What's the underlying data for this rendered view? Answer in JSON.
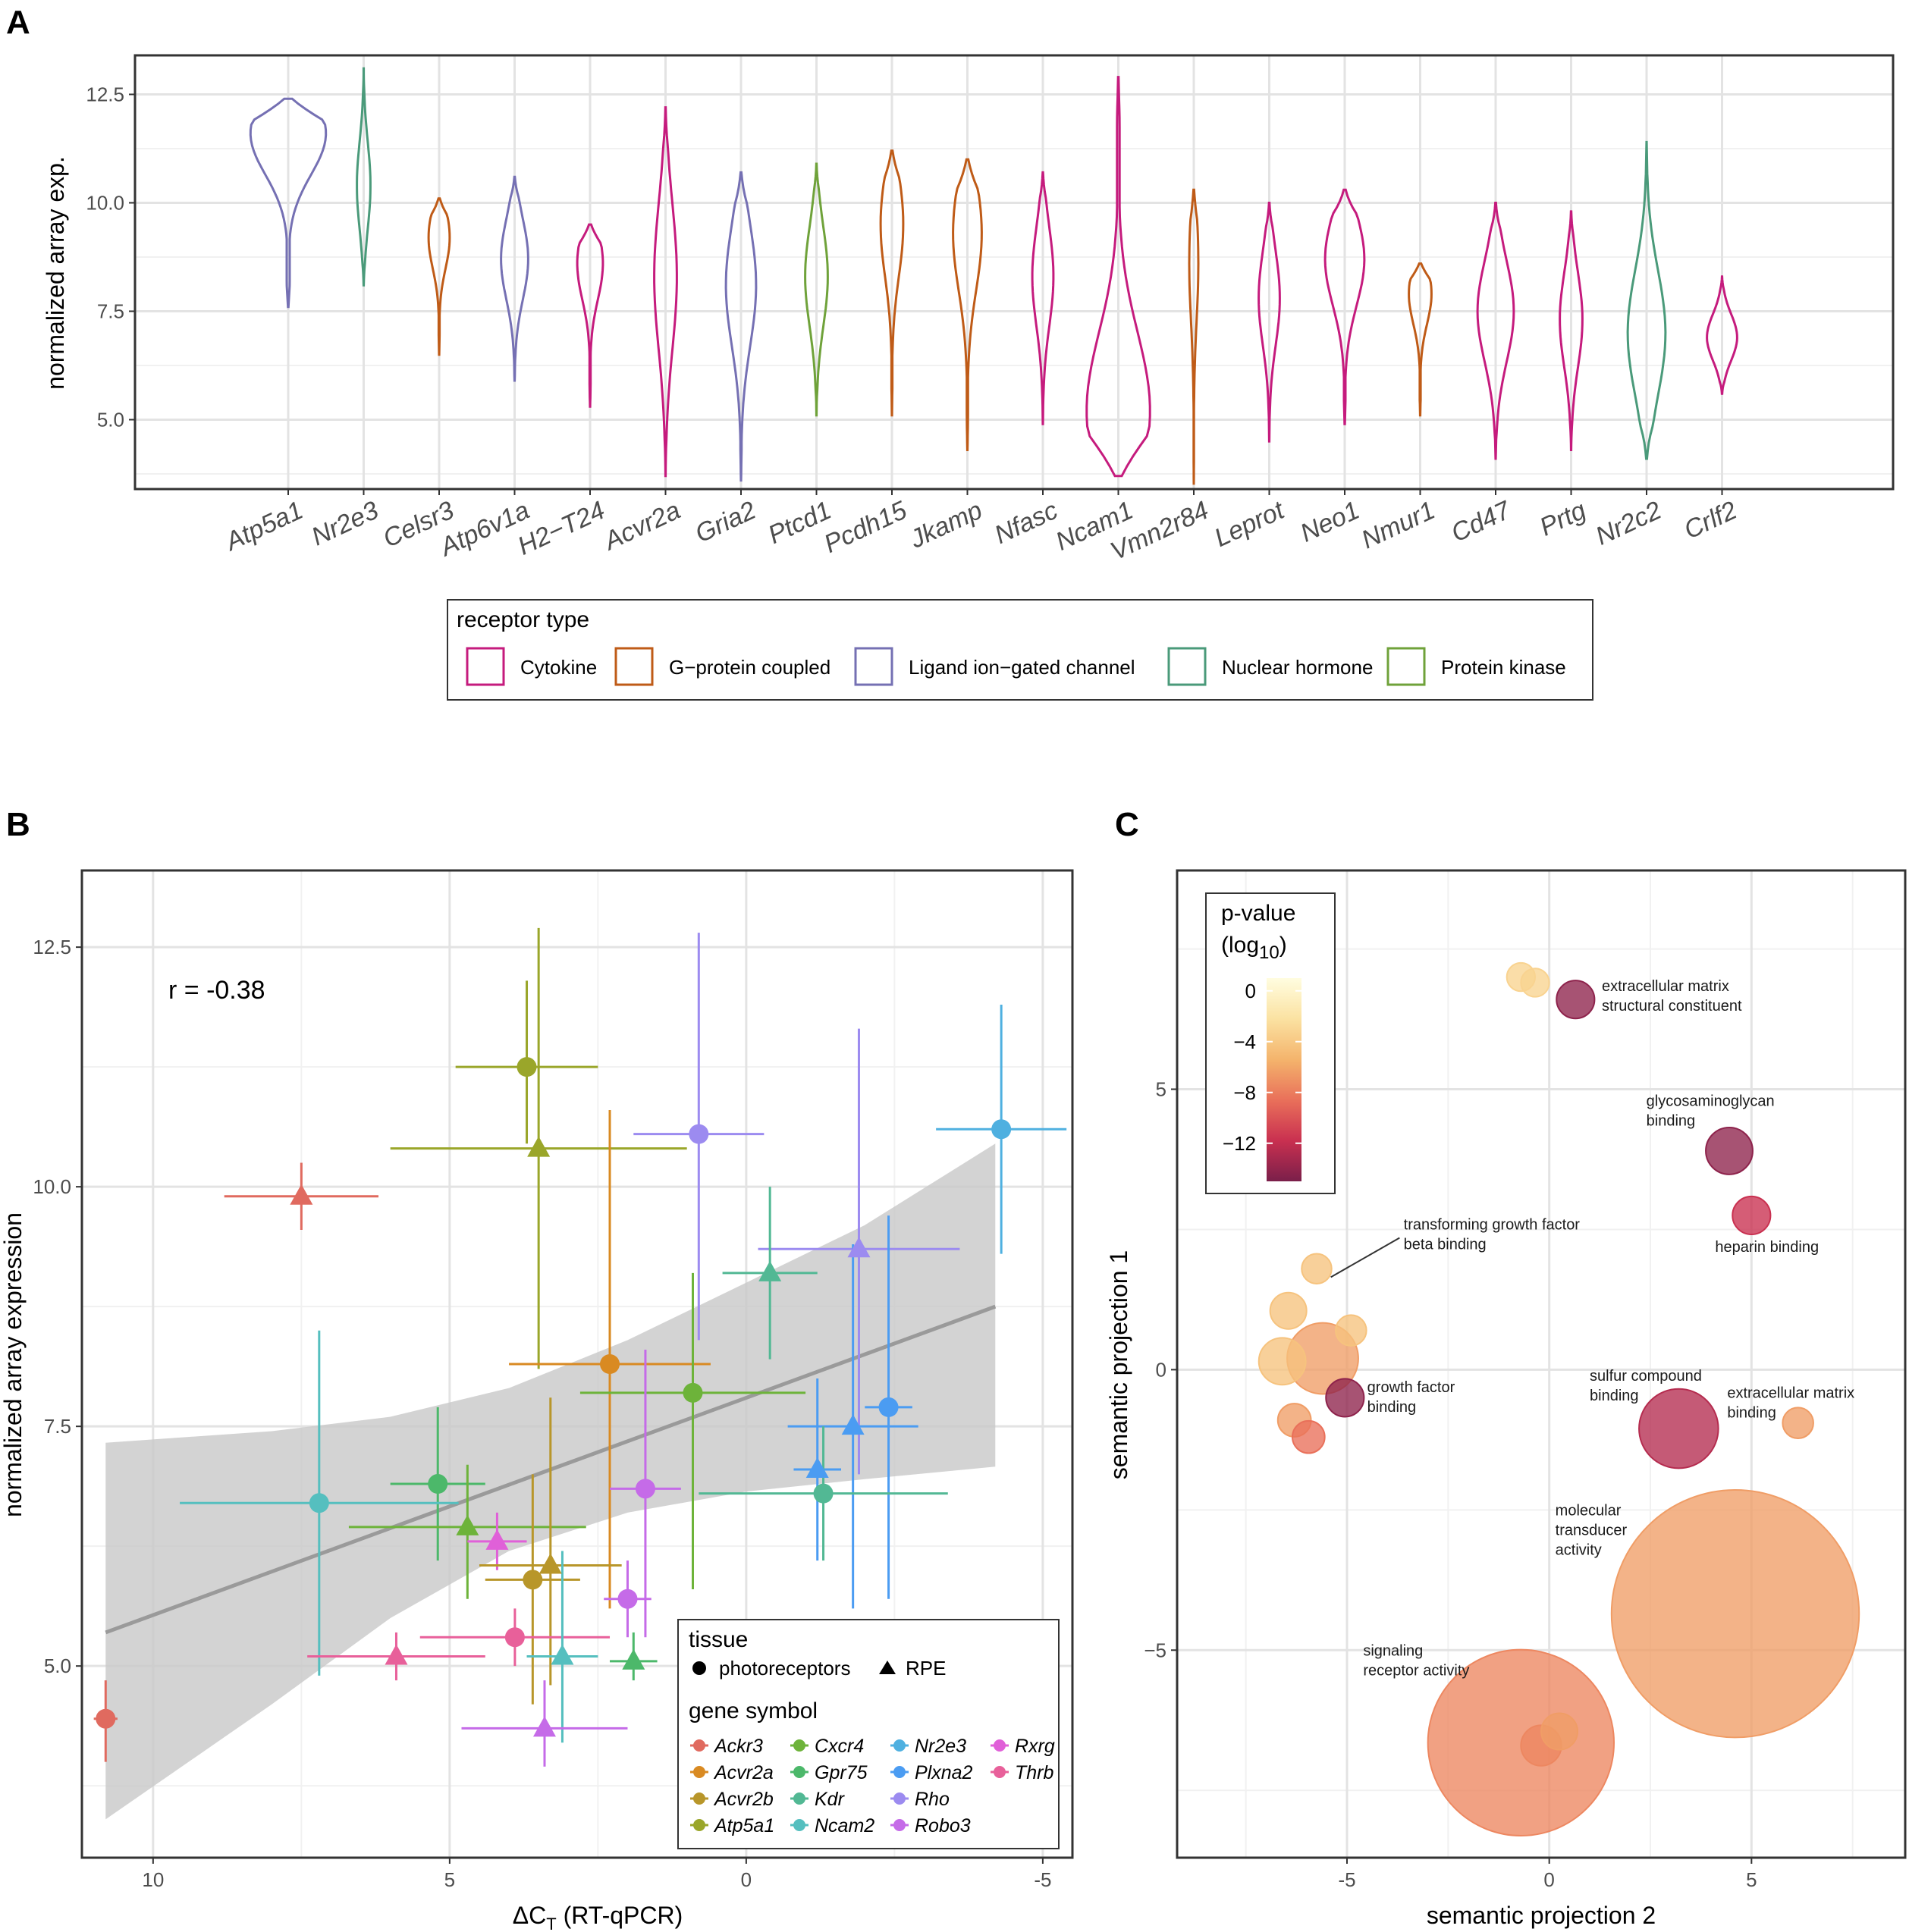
{
  "panels": {
    "A": {
      "label": "A"
    },
    "B": {
      "label": "B"
    },
    "C": {
      "label": "C"
    }
  },
  "chart_data": [
    {
      "panel": "A",
      "type": "violin",
      "ylabel": "normalized array exp.",
      "xlabel": "",
      "ylim": [
        3.4,
        13.4
      ],
      "yticks": [
        5.0,
        7.5,
        10.0,
        12.5
      ],
      "ytick_labels": [
        "5.0",
        "7.5",
        "10.0",
        "12.5"
      ],
      "legend": {
        "title": "receptor type",
        "entries": [
          {
            "name": "Cytokine",
            "color": "#c51b7d"
          },
          {
            "name": "G−protein coupled",
            "color": "#bf5b17"
          },
          {
            "name": "Ligand ion−gated channel",
            "color": "#7570b3"
          },
          {
            "name": "Nuclear hormone",
            "color": "#4a9a7a"
          },
          {
            "name": "Protein kinase",
            "color": "#6fa23a"
          }
        ]
      },
      "series": [
        {
          "gene": "Atp5a1",
          "type": "Ligand ion−gated channel",
          "min": 7.6,
          "max": 12.4,
          "mode": 11.6,
          "width": 0.5
        },
        {
          "gene": "Nr2e3",
          "type": "Nuclear hormone",
          "min": 8.1,
          "max": 13.1,
          "mode": 10.4,
          "width": 0.09
        },
        {
          "gene": "Celsr3",
          "type": "G−protein coupled",
          "min": 6.5,
          "max": 10.1,
          "mode": 9.2,
          "width": 0.14
        },
        {
          "gene": "Atp6v1a",
          "type": "Ligand ion−gated channel",
          "min": 5.9,
          "max": 10.6,
          "mode": 8.7,
          "width": 0.18
        },
        {
          "gene": "H2−T24",
          "type": "Cytokine",
          "min": 5.3,
          "max": 9.5,
          "mode": 8.6,
          "width": 0.17
        },
        {
          "gene": "Acvr2a",
          "type": "Cytokine",
          "min": 3.7,
          "max": 12.2,
          "mode": 8.3,
          "width": 0.15
        },
        {
          "gene": "Gria2",
          "type": "Ligand ion−gated channel",
          "min": 3.6,
          "max": 10.7,
          "mode": 8.1,
          "width": 0.2
        },
        {
          "gene": "Ptcd1",
          "type": "Protein kinase",
          "min": 5.1,
          "max": 10.9,
          "mode": 8.3,
          "width": 0.15
        },
        {
          "gene": "Pcdh15",
          "type": "G−protein coupled",
          "min": 5.1,
          "max": 11.2,
          "mode": 9.5,
          "width": 0.15
        },
        {
          "gene": "Jkamp",
          "type": "G−protein coupled",
          "min": 4.3,
          "max": 11.0,
          "mode": 9.3,
          "width": 0.19
        },
        {
          "gene": "Nfasc",
          "type": "Cytokine",
          "min": 4.9,
          "max": 10.7,
          "mode": 8.3,
          "width": 0.14
        },
        {
          "gene": "Ncam1",
          "type": "Cytokine",
          "min": 3.7,
          "max": 12.9,
          "mode": 5.2,
          "width": 0.42
        },
        {
          "gene": "Vmn2r84",
          "type": "G−protein coupled",
          "min": 3.5,
          "max": 10.3,
          "mode": 8.6,
          "width": 0.06
        },
        {
          "gene": "Leprot",
          "type": "Cytokine",
          "min": 4.5,
          "max": 10.0,
          "mode": 7.8,
          "width": 0.14
        },
        {
          "gene": "Neo1",
          "type": "Cytokine",
          "min": 4.9,
          "max": 10.3,
          "mode": 8.7,
          "width": 0.26
        },
        {
          "gene": "Nmur1",
          "type": "G−protein coupled",
          "min": 5.1,
          "max": 8.6,
          "mode": 7.9,
          "width": 0.15
        },
        {
          "gene": "Cd47",
          "type": "Cytokine",
          "min": 4.1,
          "max": 10.0,
          "mode": 7.5,
          "width": 0.24
        },
        {
          "gene": "Prtg",
          "type": "Cytokine",
          "min": 4.3,
          "max": 9.8,
          "mode": 7.3,
          "width": 0.15
        },
        {
          "gene": "Nr2c2",
          "type": "Nuclear hormone",
          "min": 4.1,
          "max": 11.4,
          "mode": 7.0,
          "width": 0.25
        },
        {
          "gene": "Crlf2",
          "type": "Cytokine",
          "min": 5.6,
          "max": 8.3,
          "mode": 6.9,
          "width": 0.2
        }
      ]
    },
    {
      "panel": "B",
      "type": "scatter",
      "xlabel_main": "ΔC",
      "xlabel_sub": "T",
      "xlabel_rest": " (RT-qPCR)",
      "ylabel": "normalized array expression",
      "xlim": [
        11.2,
        -5.5
      ],
      "ylim": [
        3.0,
        13.3
      ],
      "x_reversed": true,
      "xticks": [
        10,
        5,
        0,
        -5
      ],
      "xtick_labels": [
        "10",
        "5",
        "0",
        "-5"
      ],
      "yticks": [
        5.0,
        7.5,
        10.0,
        12.5
      ],
      "ytick_labels": [
        "5.0",
        "7.5",
        "10.0",
        "12.5"
      ],
      "annotation": "r = -0.38",
      "regression": {
        "x0": 10.8,
        "y0": 5.35,
        "x1": -4.2,
        "y1": 8.75
      },
      "confidence_band_upper": [
        [
          10.8,
          7.33
        ],
        [
          8,
          7.45
        ],
        [
          6,
          7.6
        ],
        [
          4,
          7.9
        ],
        [
          2,
          8.4
        ],
        [
          0,
          9.0
        ],
        [
          -2,
          9.6
        ],
        [
          -4.2,
          10.45
        ]
      ],
      "confidence_band_lower": [
        [
          10.8,
          3.4
        ],
        [
          8,
          4.6
        ],
        [
          6,
          5.5
        ],
        [
          4,
          6.2
        ],
        [
          2,
          6.6
        ],
        [
          0,
          6.82
        ],
        [
          -2,
          6.95
        ],
        [
          -4.2,
          7.08
        ]
      ],
      "legend_tissue": {
        "title": "tissue",
        "entries": [
          "photoreceptors",
          "RPE"
        ]
      },
      "legend_gene": {
        "title": "gene symbol",
        "entries": [
          {
            "name": "Ackr3",
            "color": "#e06a5f"
          },
          {
            "name": "Acvr2a",
            "color": "#d98a22"
          },
          {
            "name": "Acvr2b",
            "color": "#b8962a"
          },
          {
            "name": "Atp5a1",
            "color": "#9aa62a"
          },
          {
            "name": "Cxcr4",
            "color": "#6db33a"
          },
          {
            "name": "Gpr75",
            "color": "#4cb86a"
          },
          {
            "name": "Kdr",
            "color": "#52b894"
          },
          {
            "name": "Ncam2",
            "color": "#55bfbf"
          },
          {
            "name": "Nr2e3",
            "color": "#4fb0e0"
          },
          {
            "name": "Plxna2",
            "color": "#4b9cf2"
          },
          {
            "name": "Rho",
            "color": "#9c8bf0"
          },
          {
            "name": "Robo3",
            "color": "#c56be8"
          },
          {
            "name": "Rxrg",
            "color": "#e060d8"
          },
          {
            "name": "Thrb",
            "color": "#e8609a"
          }
        ]
      },
      "points": [
        {
          "gene": "Ackr3",
          "tissue": "photoreceptors",
          "x": 10.8,
          "y": 4.45,
          "xerr": 0.2,
          "ylo": 4.0,
          "yhi": 4.85
        },
        {
          "gene": "Ackr3",
          "tissue": "RPE",
          "x": 7.5,
          "y": 9.9,
          "xerr": 1.3,
          "ylo": 9.55,
          "yhi": 10.25
        },
        {
          "gene": "Atp5a1",
          "tissue": "photoreceptors",
          "x": 3.7,
          "y": 11.25,
          "xerr": 1.2,
          "ylo": 10.45,
          "yhi": 12.15
        },
        {
          "gene": "Atp5a1",
          "tissue": "RPE",
          "x": 3.5,
          "y": 10.4,
          "xerr": 2.5,
          "ylo": 8.1,
          "yhi": 12.7
        },
        {
          "gene": "Rho",
          "tissue": "photoreceptors",
          "x": 0.8,
          "y": 10.55,
          "xerr": 1.1,
          "ylo": 8.4,
          "yhi": 12.65
        },
        {
          "gene": "Rho",
          "tissue": "RPE",
          "x": -1.9,
          "y": 9.35,
          "xerr": 1.7,
          "ylo": 7.0,
          "yhi": 11.65
        },
        {
          "gene": "Nr2e3",
          "tissue": "photoreceptors",
          "x": -4.3,
          "y": 10.6,
          "xerr": 1.1,
          "ylo": 9.3,
          "yhi": 11.9
        },
        {
          "gene": "Kdr",
          "tissue": "RPE",
          "x": -0.4,
          "y": 9.1,
          "xerr": 0.8,
          "ylo": 8.2,
          "yhi": 10.0
        },
        {
          "gene": "Acvr2a",
          "tissue": "photoreceptors",
          "x": 2.3,
          "y": 8.15,
          "xerr": 1.7,
          "ylo": 5.6,
          "yhi": 10.8
        },
        {
          "gene": "Cxcr4",
          "tissue": "photoreceptors",
          "x": 0.9,
          "y": 7.85,
          "xerr": 1.9,
          "ylo": 5.8,
          "yhi": 9.1
        },
        {
          "gene": "Plxna2",
          "tissue": "photoreceptors",
          "x": -2.4,
          "y": 7.7,
          "xerr": 0.4,
          "ylo": 5.7,
          "yhi": 9.7
        },
        {
          "gene": "Plxna2",
          "tissue": "RPE",
          "x": -1.8,
          "y": 7.5,
          "xerr": 1.1,
          "ylo": 5.6,
          "yhi": 9.4
        },
        {
          "gene": "Plxna2",
          "tissue": "RPE",
          "x": -1.2,
          "y": 7.05,
          "xerr": 0.4,
          "ylo": 6.1,
          "yhi": 8.0
        },
        {
          "gene": "Kdr",
          "tissue": "photoreceptors",
          "x": -1.3,
          "y": 6.8,
          "xerr": 2.1,
          "ylo": 6.1,
          "yhi": 7.5
        },
        {
          "gene": "Gpr75",
          "tissue": "photoreceptors",
          "x": 5.2,
          "y": 6.9,
          "xerr": 0.8,
          "ylo": 6.1,
          "yhi": 7.7
        },
        {
          "gene": "Ncam2",
          "tissue": "photoreceptors",
          "x": 7.2,
          "y": 6.7,
          "xerr": 2.35,
          "ylo": 4.9,
          "yhi": 8.5
        },
        {
          "gene": "Cxcr4",
          "tissue": "RPE",
          "x": 4.7,
          "y": 6.45,
          "xerr": 2.0,
          "ylo": 5.7,
          "yhi": 7.1
        },
        {
          "gene": "Rxrg",
          "tissue": "RPE",
          "x": 4.2,
          "y": 6.3,
          "xerr": 0.5,
          "ylo": 6.0,
          "yhi": 6.6
        },
        {
          "gene": "Robo3",
          "tissue": "photoreceptors",
          "x": 1.7,
          "y": 6.85,
          "xerr": 0.6,
          "ylo": 5.3,
          "yhi": 8.3
        },
        {
          "gene": "Acvr2b",
          "tissue": "RPE",
          "x": 3.3,
          "y": 6.05,
          "xerr": 1.2,
          "ylo": 4.8,
          "yhi": 7.8
        },
        {
          "gene": "Acvr2b",
          "tissue": "photoreceptors",
          "x": 3.6,
          "y": 5.9,
          "xerr": 0.8,
          "ylo": 4.6,
          "yhi": 7.0
        },
        {
          "gene": "Robo3",
          "tissue": "photoreceptors",
          "x": 2.0,
          "y": 5.7,
          "xerr": 0.4,
          "ylo": 5.3,
          "yhi": 6.1
        },
        {
          "gene": "Thrb",
          "tissue": "photoreceptors",
          "x": 3.9,
          "y": 5.3,
          "xerr": 1.6,
          "ylo": 5.0,
          "yhi": 5.6
        },
        {
          "gene": "Thrb",
          "tissue": "RPE",
          "x": 5.9,
          "y": 5.1,
          "xerr": 1.5,
          "ylo": 4.85,
          "yhi": 5.35
        },
        {
          "gene": "Ncam2",
          "tissue": "RPE",
          "x": 3.1,
          "y": 5.1,
          "xerr": 0.6,
          "ylo": 4.2,
          "yhi": 6.2
        },
        {
          "gene": "Gpr75",
          "tissue": "RPE",
          "x": 1.9,
          "y": 5.05,
          "xerr": 0.4,
          "ylo": 4.85,
          "yhi": 5.35
        },
        {
          "gene": "Robo3",
          "tissue": "RPE",
          "x": 3.4,
          "y": 4.35,
          "xerr": 1.4,
          "ylo": 3.95,
          "yhi": 4.85
        }
      ]
    },
    {
      "panel": "C",
      "type": "bubble",
      "xlabel": "semantic projection 2",
      "ylabel": "semantic projection 1",
      "xlim": [
        -9.2,
        8.8
      ],
      "ylim": [
        -8.7,
        8.9
      ],
      "xticks": [
        -5,
        0,
        5
      ],
      "xtick_labels": [
        "-5",
        "0",
        "5"
      ],
      "yticks": [
        -5,
        0,
        5
      ],
      "ytick_labels": [
        "−5",
        "0",
        "5"
      ],
      "colorbar": {
        "title_line1": "p-value",
        "title_line2_main": "(log",
        "title_line2_sub": "10",
        "title_line2_end": ")",
        "ticks": [
          0,
          -4,
          -8,
          -12
        ],
        "tick_labels": [
          "0",
          "−4",
          "−8",
          "−12"
        ],
        "range": [
          1,
          -15
        ]
      },
      "bubbles": [
        {
          "x": -0.7,
          "y": 7.0,
          "radius": 0.35,
          "pvalue": -3
        },
        {
          "x": -0.35,
          "y": 6.9,
          "radius": 0.35,
          "pvalue": -3
        },
        {
          "x": 0.65,
          "y": 6.6,
          "radius": 0.47,
          "pvalue": -14
        },
        {
          "x": 4.45,
          "y": 3.9,
          "radius": 0.58,
          "pvalue": -14
        },
        {
          "x": 5.0,
          "y": 2.75,
          "radius": 0.47,
          "pvalue": -11
        },
        {
          "x": -5.75,
          "y": 1.8,
          "radius": 0.37,
          "pvalue": -4
        },
        {
          "x": -6.45,
          "y": 1.05,
          "radius": 0.45,
          "pvalue": -4
        },
        {
          "x": -4.9,
          "y": 0.7,
          "radius": 0.38,
          "pvalue": -4
        },
        {
          "x": -6.6,
          "y": 0.15,
          "radius": 0.58,
          "pvalue": -4
        },
        {
          "x": -5.6,
          "y": 0.2,
          "radius": 0.88,
          "pvalue": -6
        },
        {
          "x": -5.05,
          "y": -0.5,
          "radius": 0.47,
          "pvalue": -14
        },
        {
          "x": -6.3,
          "y": -0.9,
          "radius": 0.41,
          "pvalue": -6
        },
        {
          "x": -5.95,
          "y": -1.2,
          "radius": 0.4,
          "pvalue": -8
        },
        {
          "x": 3.2,
          "y": -1.05,
          "radius": 0.98,
          "pvalue": -12
        },
        {
          "x": 6.15,
          "y": -0.95,
          "radius": 0.38,
          "pvalue": -6
        },
        {
          "x": 4.6,
          "y": -4.35,
          "radius": 3.06,
          "pvalue": -6
        },
        {
          "x": -0.7,
          "y": -6.65,
          "radius": 2.3,
          "pvalue": -7
        },
        {
          "x": 0.25,
          "y": -6.45,
          "radius": 0.45,
          "pvalue": -6
        },
        {
          "x": -0.2,
          "y": -6.7,
          "radius": 0.5,
          "pvalue": -7
        }
      ],
      "labels": [
        {
          "lines": [
            "extracellular matrix",
            "structural constituent"
          ],
          "x": 1.3,
          "y": 6.75
        },
        {
          "lines": [
            "glycosaminoglycan",
            "binding"
          ],
          "x": 2.4,
          "y": 4.7
        },
        {
          "lines": [
            "heparin binding"
          ],
          "x": 4.1,
          "y": 2.1
        },
        {
          "lines": [
            "transforming growth factor",
            "beta binding"
          ],
          "x": -3.6,
          "y": 2.5
        },
        {
          "lines": [
            "growth factor",
            "binding"
          ],
          "x": -4.5,
          "y": -0.4
        },
        {
          "lines": [
            "sulfur compound",
            "binding"
          ],
          "x": 1.0,
          "y": -0.2
        },
        {
          "lines": [
            "extracellular matrix",
            "binding"
          ],
          "x": 4.4,
          "y": -0.5
        },
        {
          "lines": [
            "molecular",
            "transducer",
            "activity"
          ],
          "x": 0.15,
          "y": -2.6
        },
        {
          "lines": [
            "signaling",
            "receptor activity"
          ],
          "x": -4.6,
          "y": -5.1
        }
      ],
      "leader_lines": [
        {
          "x1": -3.7,
          "y1": 2.35,
          "x2": -5.4,
          "y2": 1.65
        }
      ]
    }
  ]
}
